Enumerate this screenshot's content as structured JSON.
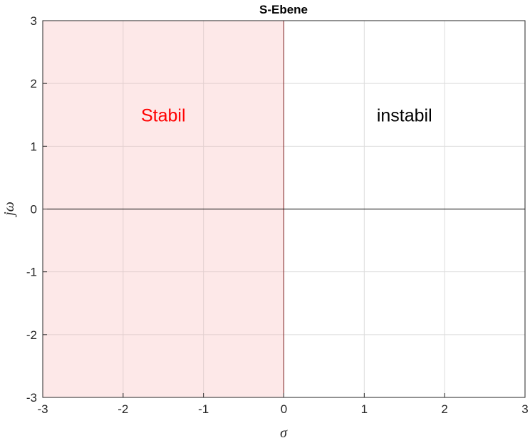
{
  "chart_data": {
    "type": "area",
    "title": "S-Ebene",
    "xlabel": "σ",
    "ylabel": "jω",
    "xlim": [
      -3,
      3
    ],
    "ylim": [
      -3,
      3
    ],
    "xticks": [
      -3,
      -2,
      -1,
      0,
      1,
      2,
      3
    ],
    "yticks": [
      -3,
      -2,
      -1,
      0,
      1,
      2,
      3
    ],
    "xtick_labels": [
      "-3",
      "-2",
      "-1",
      "0",
      "1",
      "2",
      "3"
    ],
    "ytick_labels": [
      "-3",
      "-2",
      "-1",
      "0",
      "1",
      "2",
      "3"
    ],
    "grid": true,
    "shaded_region": {
      "x": [
        -3,
        0
      ],
      "y": [
        -3,
        3
      ],
      "color": "#fde8e8",
      "edge_color": "#7a1f1f"
    },
    "axis_lines": {
      "x0": 0,
      "y0": 0,
      "color": "#000000"
    },
    "annotations": [
      {
        "text": "Stabil",
        "x": -1.5,
        "y": 1.5,
        "color": "#ff0000"
      },
      {
        "text": "instabil",
        "x": 1.5,
        "y": 1.5,
        "color": "#000000"
      }
    ]
  }
}
